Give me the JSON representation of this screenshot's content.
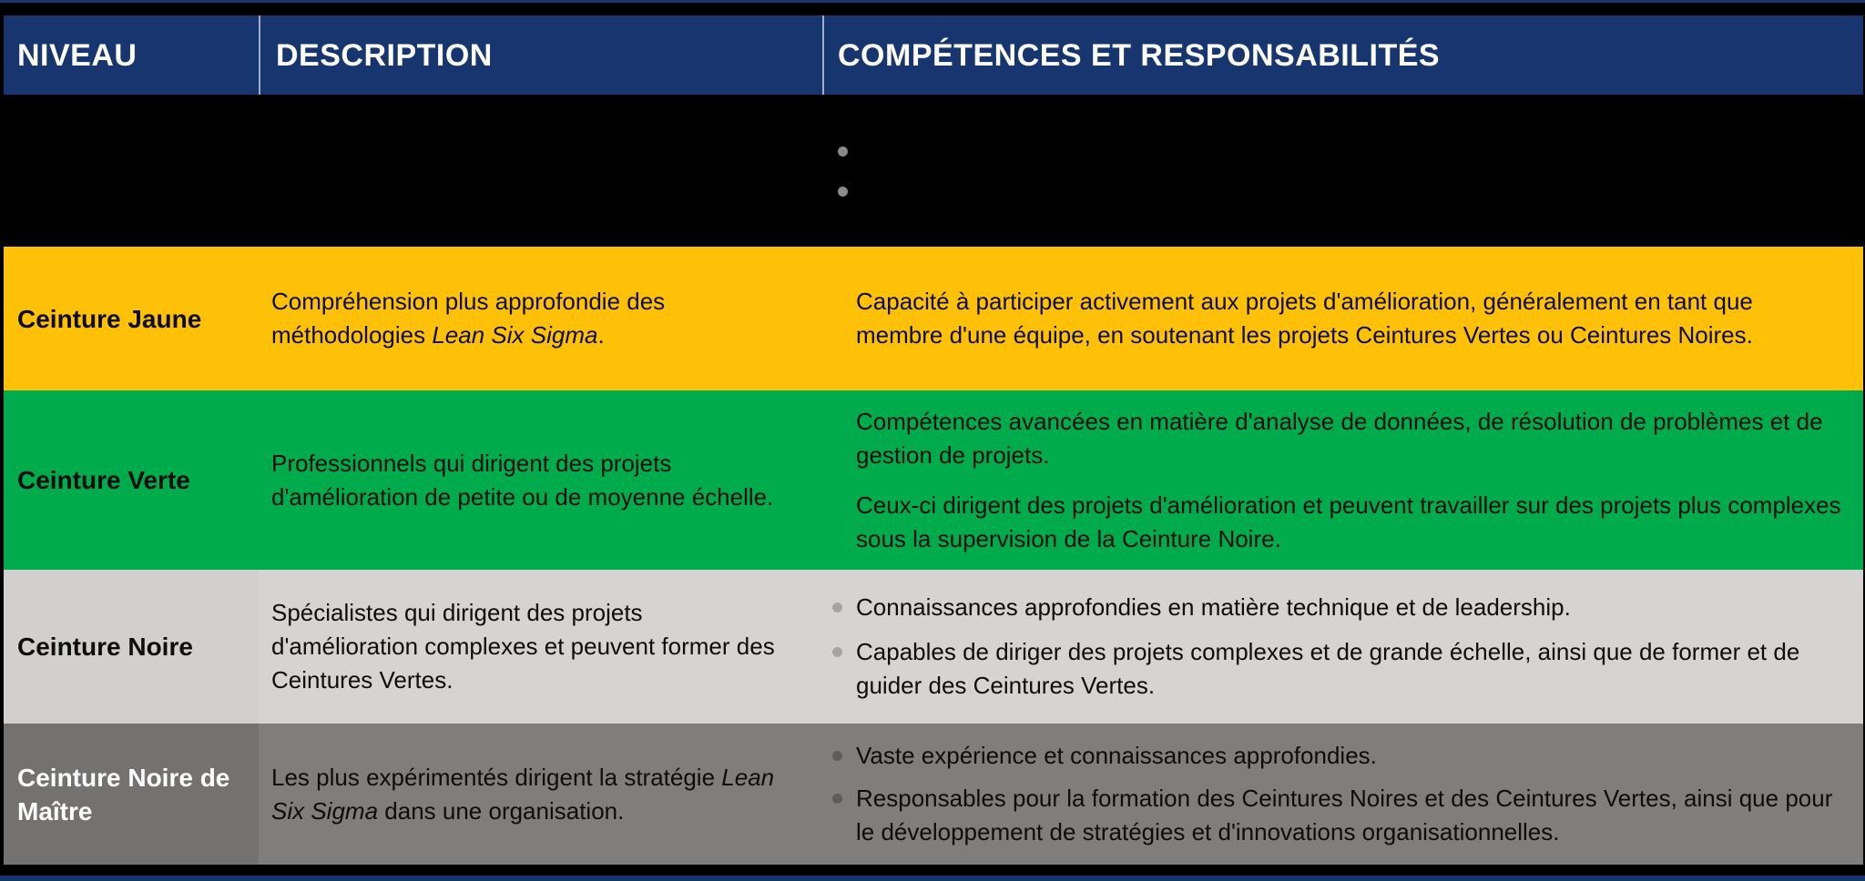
{
  "header": {
    "columns": [
      "NIVEAU",
      "DESCRIPTION",
      "COMPÉTENCES ET RESPONSABILITÉS"
    ]
  },
  "rows": {
    "blank": {
      "level": "",
      "desc_pre": "",
      "desc_italic": "",
      "desc_post": "",
      "items": [
        "",
        ""
      ]
    },
    "jaune": {
      "level": "Ceinture Jaune",
      "desc_pre": "Compréhension plus approfondie des méthodologies ",
      "desc_italic": "Lean Six Sigma",
      "desc_post": ".",
      "items": [
        "Capacité à participer activement aux projets d'amélioration, généralement en tant que membre d'une équipe, en soutenant les projets Ceintures Vertes ou Ceintures Noires."
      ]
    },
    "verte": {
      "level": "Ceinture Verte",
      "desc_pre": "Professionnels qui dirigent des projets d'amélioration de petite ou de moyenne échelle.",
      "desc_italic": "",
      "desc_post": "",
      "items": [
        "Compétences avancées en matière d'analyse de données, de résolution de problèmes et de gestion de projets.",
        "Ceux-ci dirigent des projets d'amélioration et peuvent travailler sur des projets plus complexes sous la supervision de la Ceinture Noire."
      ]
    },
    "noire": {
      "level": "Ceinture Noire",
      "desc_pre": "Spécialistes qui dirigent des projets d'amélioration complexes et peuvent former des Ceintures Vertes.",
      "desc_italic": "",
      "desc_post": "",
      "items": [
        "Connaissances approfondies en matière technique et de leadership.",
        "Capables de diriger des projets complexes et de grande échelle, ainsi que de former et de guider des Ceintures Vertes."
      ]
    },
    "maitre": {
      "level": "Ceinture Noire de Maître",
      "desc_pre": "Les plus expérimentés dirigent la stratégie ",
      "desc_italic": "Lean Six Sigma",
      "desc_post": " dans une organisation.",
      "items": [
        "Vaste expérience et connaissances approfondies.",
        "Responsables pour la formation des Ceintures Noires et des Ceintures Vertes, ainsi que pour le développement de stratégies et d'innovations organisationnelles."
      ]
    }
  },
  "colors": {
    "header_navy": "#17356F",
    "yellow": "#FFC008",
    "green": "#00AB4C",
    "light_gray": "#D5D4D2",
    "dark_gray": "#7F7E7C",
    "dark_gray_level_col": "#737271",
    "bullet_gray": "#8A8A8A",
    "text_black": "#0D0D0D",
    "text_white": "#FFFFFF"
  }
}
